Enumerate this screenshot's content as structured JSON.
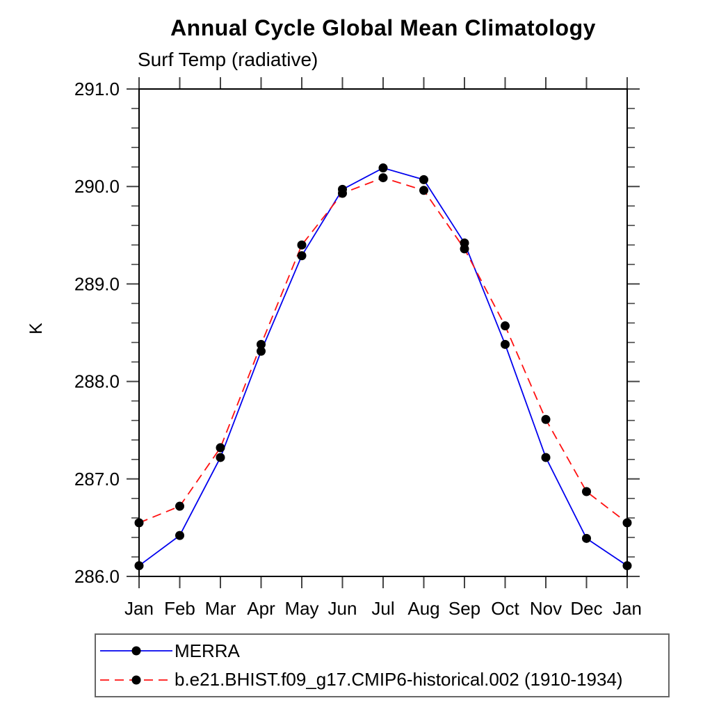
{
  "title": "Annual Cycle Global Mean Climatology",
  "subtitle": "Surf Temp (radiative)",
  "chart_data": {
    "type": "line",
    "categories": [
      "Jan",
      "Feb",
      "Mar",
      "Apr",
      "May",
      "Jun",
      "Jul",
      "Aug",
      "Sep",
      "Oct",
      "Nov",
      "Dec",
      "Jan"
    ],
    "series": [
      {
        "name": "MERRA",
        "color": "#0000ee",
        "line_style": "solid",
        "marker": "filled-circle",
        "values": [
          286.11,
          286.42,
          287.22,
          288.31,
          289.29,
          289.97,
          290.19,
          290.07,
          289.42,
          288.38,
          287.22,
          286.39,
          286.11
        ]
      },
      {
        "name": "b.e21.BHIST.f09_g17.CMIP6-historical.002 (1910-1934)",
        "color": "#ff1010",
        "line_style": "dashed",
        "marker": "filled-circle",
        "values": [
          286.55,
          286.72,
          287.32,
          288.38,
          289.4,
          289.93,
          290.09,
          289.96,
          289.36,
          288.57,
          287.61,
          286.87,
          286.55
        ]
      }
    ],
    "xlabel": "",
    "ylabel": "K",
    "ylim": [
      286.0,
      291.0
    ],
    "y_major_step": 1.0,
    "y_minor_step": 0.2,
    "y_tick_labels": [
      "286.0",
      "287.0",
      "288.0",
      "289.0",
      "290.0",
      "291.0"
    ],
    "grid": false,
    "legend_position": "bottom-left-boxed",
    "marker_color": "#000000",
    "frame_color": "#000000",
    "tick_color": "#444444"
  }
}
